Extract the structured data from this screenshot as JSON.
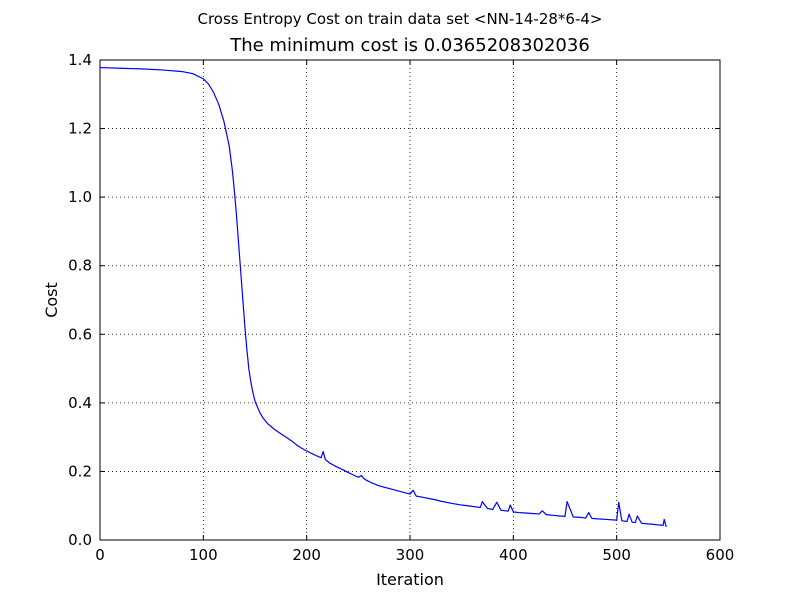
{
  "chart_data": {
    "type": "line",
    "suptitle": "Cross Entropy Cost on train data set <NN-14-28*6-4>",
    "title": "The minimum cost is 0.0365208302036",
    "xlabel": "Iteration",
    "ylabel": "Cost",
    "xlim": [
      0,
      600
    ],
    "ylim": [
      0.0,
      1.4
    ],
    "xticks": [
      0,
      100,
      200,
      300,
      400,
      500,
      600
    ],
    "yticks": [
      0.0,
      0.2,
      0.4,
      0.6,
      0.8,
      1.0,
      1.2,
      1.4
    ],
    "xtick_labels": [
      "0",
      "100",
      "200",
      "300",
      "400",
      "500",
      "600"
    ],
    "ytick_labels": [
      "0.0",
      "0.2",
      "0.4",
      "0.6",
      "0.8",
      "1.0",
      "1.2",
      "1.4"
    ],
    "grid": true,
    "line_color": "#0000ff",
    "series": [
      {
        "x": [
          0,
          20,
          40,
          60,
          80,
          90,
          100,
          105,
          110,
          115,
          120,
          125,
          128,
          130,
          132,
          134,
          136,
          138,
          140,
          142,
          144,
          146,
          148,
          150,
          152,
          155,
          158,
          162,
          166,
          170,
          175,
          180,
          185,
          190,
          195,
          200,
          205,
          210,
          214,
          216,
          218,
          222,
          228,
          235,
          240,
          245,
          250,
          253,
          255,
          258,
          262,
          270,
          280,
          285,
          290,
          295,
          300,
          303,
          306,
          310,
          315,
          320,
          325,
          330,
          340,
          350,
          360,
          368,
          370,
          375,
          380,
          384,
          388,
          395,
          397,
          400,
          405,
          410,
          420,
          425,
          428,
          432,
          438,
          445,
          450,
          452,
          458,
          465,
          470,
          473,
          476,
          480,
          490,
          500,
          502,
          505,
          510,
          512,
          515,
          518,
          520,
          524,
          530,
          535,
          540,
          545,
          546,
          548
        ],
        "y": [
          1.378,
          1.376,
          1.374,
          1.371,
          1.366,
          1.36,
          1.345,
          1.33,
          1.305,
          1.27,
          1.22,
          1.15,
          1.08,
          1.02,
          0.95,
          0.87,
          0.79,
          0.71,
          0.63,
          0.56,
          0.5,
          0.46,
          0.43,
          0.405,
          0.39,
          0.37,
          0.355,
          0.34,
          0.33,
          0.32,
          0.31,
          0.3,
          0.29,
          0.278,
          0.268,
          0.26,
          0.252,
          0.245,
          0.24,
          0.258,
          0.235,
          0.225,
          0.215,
          0.205,
          0.197,
          0.19,
          0.183,
          0.188,
          0.18,
          0.174,
          0.168,
          0.158,
          0.15,
          0.146,
          0.142,
          0.138,
          0.134,
          0.145,
          0.128,
          0.126,
          0.123,
          0.12,
          0.117,
          0.113,
          0.107,
          0.102,
          0.098,
          0.095,
          0.112,
          0.092,
          0.089,
          0.11,
          0.087,
          0.084,
          0.102,
          0.082,
          0.08,
          0.079,
          0.077,
          0.076,
          0.085,
          0.074,
          0.072,
          0.07,
          0.069,
          0.112,
          0.067,
          0.066,
          0.064,
          0.08,
          0.063,
          0.062,
          0.06,
          0.058,
          0.11,
          0.056,
          0.054,
          0.075,
          0.052,
          0.051,
          0.07,
          0.049,
          0.047,
          0.046,
          0.044,
          0.043,
          0.06,
          0.038
        ]
      }
    ]
  }
}
